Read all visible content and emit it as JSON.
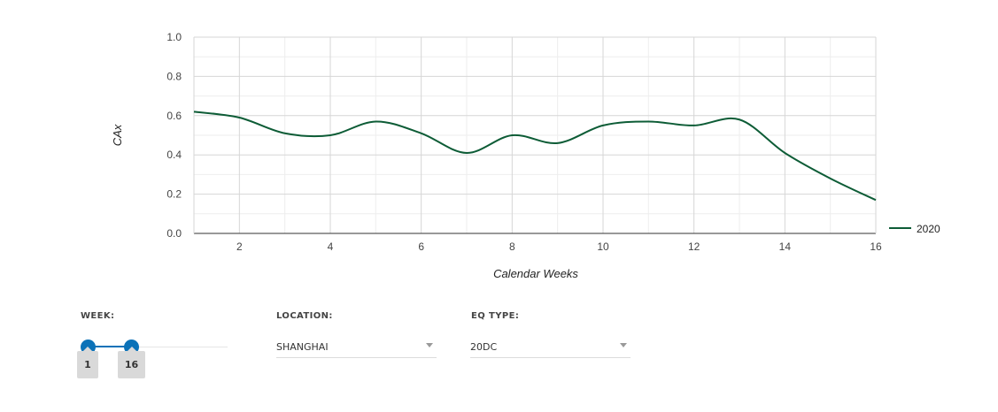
{
  "chart_data": {
    "type": "line",
    "xlabel": "Calendar Weeks",
    "ylabel": "CAx",
    "xlim": [
      1,
      16
    ],
    "ylim": [
      0,
      1.0
    ],
    "x_ticks": [
      2,
      4,
      6,
      8,
      10,
      12,
      14,
      16
    ],
    "y_ticks": [
      "0.0",
      "0.2",
      "0.4",
      "0.6",
      "0.8",
      "1.0"
    ],
    "grid": true,
    "legend_position": "right",
    "series": [
      {
        "name": "2020",
        "color": "#0d5c36",
        "x": [
          1,
          2,
          3,
          4,
          5,
          6,
          7,
          8,
          9,
          10,
          11,
          12,
          13,
          14,
          15,
          16
        ],
        "y": [
          0.62,
          0.59,
          0.51,
          0.5,
          0.57,
          0.51,
          0.41,
          0.5,
          0.46,
          0.55,
          0.57,
          0.55,
          0.58,
          0.41,
          0.28,
          0.17
        ]
      }
    ]
  },
  "controls": {
    "week": {
      "label": "WEEK:",
      "min_value": "1",
      "max_value": "16",
      "range_min": 1,
      "range_max": 52,
      "accent": "#0b72b8"
    },
    "location": {
      "label": "LOCATION:",
      "value": "SHANGHAI"
    },
    "eq_type": {
      "label": "EQ TYPE:",
      "value": "20DC"
    }
  }
}
